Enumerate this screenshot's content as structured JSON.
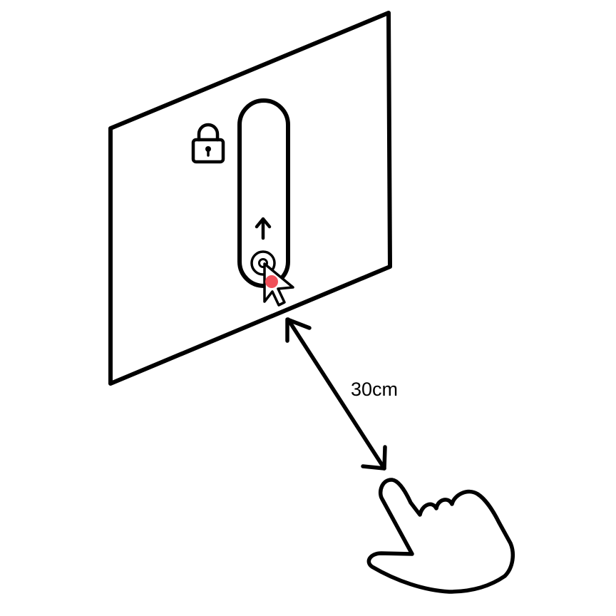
{
  "distance_label": "30cm",
  "icons": {
    "lock": "lock-icon",
    "arrow": "arrow-up-icon",
    "cursor": "cursor-arrow-icon",
    "hand": "pointing-hand-icon",
    "distance_arrow": "double-headed-arrow-icon"
  },
  "colors": {
    "line": "#000000",
    "background": "#ffffff",
    "touch_point": "#f0505a"
  }
}
